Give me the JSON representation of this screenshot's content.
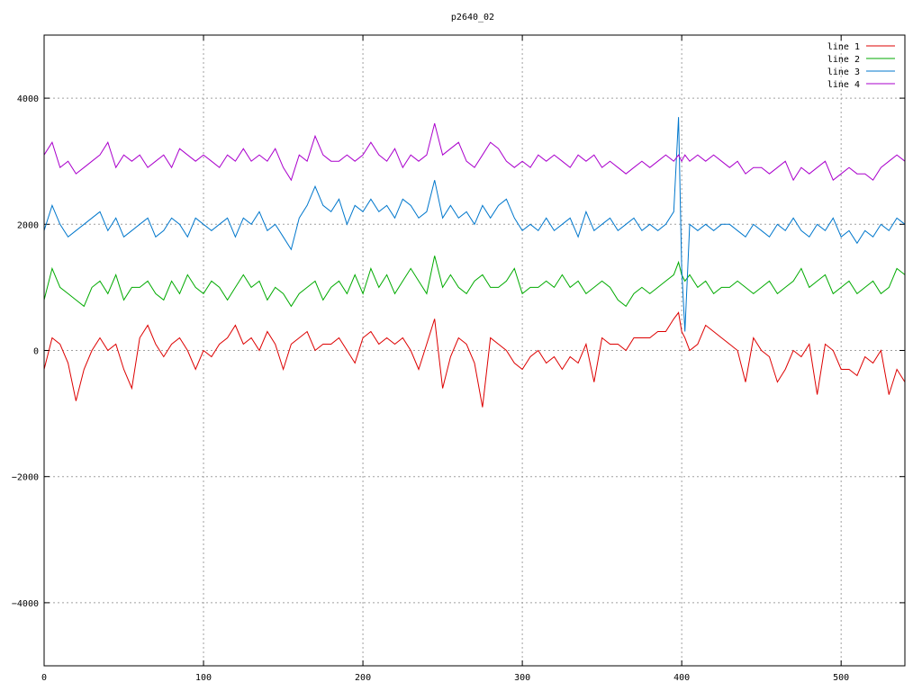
{
  "chart_data": {
    "type": "line",
    "title": "p2640_02",
    "xlabel": "",
    "ylabel": "",
    "xlim": [
      0,
      540
    ],
    "ylim": [
      -5000,
      5000
    ],
    "xticks": [
      0,
      100,
      200,
      300,
      400,
      500
    ],
    "yticks": [
      -4000,
      -2000,
      0,
      2000,
      4000
    ],
    "xtick_labels": [
      "0",
      "100",
      "200",
      "300",
      "400",
      "500"
    ],
    "ytick_labels": [
      "−4000",
      "−2000",
      "0",
      "2000",
      "4000"
    ],
    "grid": true,
    "legend_position": "top-right",
    "x": [
      0,
      5,
      10,
      15,
      20,
      25,
      30,
      35,
      40,
      45,
      50,
      55,
      60,
      65,
      70,
      75,
      80,
      85,
      90,
      95,
      100,
      105,
      110,
      115,
      120,
      125,
      130,
      135,
      140,
      145,
      150,
      155,
      160,
      165,
      170,
      175,
      180,
      185,
      190,
      195,
      200,
      205,
      210,
      215,
      220,
      225,
      230,
      235,
      240,
      245,
      250,
      255,
      260,
      265,
      270,
      275,
      280,
      285,
      290,
      295,
      300,
      305,
      310,
      315,
      320,
      325,
      330,
      335,
      340,
      345,
      350,
      355,
      360,
      365,
      370,
      375,
      380,
      385,
      390,
      395,
      398,
      400,
      402,
      405,
      410,
      415,
      420,
      425,
      430,
      435,
      440,
      445,
      450,
      455,
      460,
      465,
      470,
      475,
      480,
      485,
      490,
      495,
      500,
      505,
      510,
      515,
      520,
      525,
      530,
      535,
      540
    ],
    "series": [
      {
        "name": "line 1",
        "color": "#dd0000",
        "values": [
          -300,
          200,
          100,
          -200,
          -800,
          -300,
          0,
          200,
          0,
          100,
          -300,
          -600,
          200,
          400,
          100,
          -100,
          100,
          200,
          0,
          -300,
          0,
          -100,
          100,
          200,
          400,
          100,
          200,
          0,
          300,
          100,
          -300,
          100,
          200,
          300,
          0,
          100,
          100,
          200,
          0,
          -200,
          200,
          300,
          100,
          200,
          100,
          200,
          0,
          -300,
          100,
          500,
          -600,
          -100,
          200,
          100,
          -200,
          -900,
          200,
          100,
          0,
          -200,
          -300,
          -100,
          0,
          -200,
          -100,
          -300,
          -100,
          -200,
          100,
          -500,
          200,
          100,
          100,
          0,
          200,
          200,
          200,
          300,
          300,
          500,
          600,
          300,
          200,
          0,
          100,
          400,
          300,
          200,
          100,
          0,
          -500,
          200,
          0,
          -100,
          -500,
          -300,
          0,
          -100,
          100,
          -700,
          100,
          0,
          -300,
          -300,
          -400,
          -100,
          -200,
          0,
          -700,
          -300,
          -500
        ]
      },
      {
        "name": "line 2",
        "color": "#00aa00",
        "values": [
          800,
          1300,
          1000,
          900,
          800,
          700,
          1000,
          1100,
          900,
          1200,
          800,
          1000,
          1000,
          1100,
          900,
          800,
          1100,
          900,
          1200,
          1000,
          900,
          1100,
          1000,
          800,
          1000,
          1200,
          1000,
          1100,
          800,
          1000,
          900,
          700,
          900,
          1000,
          1100,
          800,
          1000,
          1100,
          900,
          1200,
          900,
          1300,
          1000,
          1200,
          900,
          1100,
          1300,
          1100,
          900,
          1500,
          1000,
          1200,
          1000,
          900,
          1100,
          1200,
          1000,
          1000,
          1100,
          1300,
          900,
          1000,
          1000,
          1100,
          1000,
          1200,
          1000,
          1100,
          900,
          1000,
          1100,
          1000,
          800,
          700,
          900,
          1000,
          900,
          1000,
          1100,
          1200,
          1400,
          1200,
          1100,
          1200,
          1000,
          1100,
          900,
          1000,
          1000,
          1100,
          1000,
          900,
          1000,
          1100,
          900,
          1000,
          1100,
          1300,
          1000,
          1100,
          1200,
          900,
          1000,
          1100,
          900,
          1000,
          1100,
          900,
          1000,
          1300,
          1200
        ]
      },
      {
        "name": "line 3",
        "color": "#0077cc",
        "values": [
          1900,
          2300,
          2000,
          1800,
          1900,
          2000,
          2100,
          2200,
          1900,
          2100,
          1800,
          1900,
          2000,
          2100,
          1800,
          1900,
          2100,
          2000,
          1800,
          2100,
          2000,
          1900,
          2000,
          2100,
          1800,
          2100,
          2000,
          2200,
          1900,
          2000,
          1800,
          1600,
          2100,
          2300,
          2600,
          2300,
          2200,
          2400,
          2000,
          2300,
          2200,
          2400,
          2200,
          2300,
          2100,
          2400,
          2300,
          2100,
          2200,
          2700,
          2100,
          2300,
          2100,
          2200,
          2000,
          2300,
          2100,
          2300,
          2400,
          2100,
          1900,
          2000,
          1900,
          2100,
          1900,
          2000,
          2100,
          1800,
          2200,
          1900,
          2000,
          2100,
          1900,
          2000,
          2100,
          1900,
          2000,
          1900,
          2000,
          2200,
          3700,
          1300,
          300,
          2000,
          1900,
          2000,
          1900,
          2000,
          2000,
          1900,
          1800,
          2000,
          1900,
          1800,
          2000,
          1900,
          2100,
          1900,
          1800,
          2000,
          1900,
          2100,
          1800,
          1900,
          1700,
          1900,
          1800,
          2000,
          1900,
          2100,
          2000
        ]
      },
      {
        "name": "line 4",
        "color": "#aa00cc",
        "values": [
          3100,
          3300,
          2900,
          3000,
          2800,
          2900,
          3000,
          3100,
          3300,
          2900,
          3100,
          3000,
          3100,
          2900,
          3000,
          3100,
          2900,
          3200,
          3100,
          3000,
          3100,
          3000,
          2900,
          3100,
          3000,
          3200,
          3000,
          3100,
          3000,
          3200,
          2900,
          2700,
          3100,
          3000,
          3400,
          3100,
          3000,
          3000,
          3100,
          3000,
          3100,
          3300,
          3100,
          3000,
          3200,
          2900,
          3100,
          3000,
          3100,
          3600,
          3100,
          3200,
          3300,
          3000,
          2900,
          3100,
          3300,
          3200,
          3000,
          2900,
          3000,
          2900,
          3100,
          3000,
          3100,
          3000,
          2900,
          3100,
          3000,
          3100,
          2900,
          3000,
          2900,
          2800,
          2900,
          3000,
          2900,
          3000,
          3100,
          3000,
          3100,
          3000,
          3100,
          3000,
          3100,
          3000,
          3100,
          3000,
          2900,
          3000,
          2800,
          2900,
          2900,
          2800,
          2900,
          3000,
          2700,
          2900,
          2800,
          2900,
          3000,
          2700,
          2800,
          2900,
          2800,
          2800,
          2700,
          2900,
          3000,
          3100,
          3000
        ]
      }
    ]
  }
}
